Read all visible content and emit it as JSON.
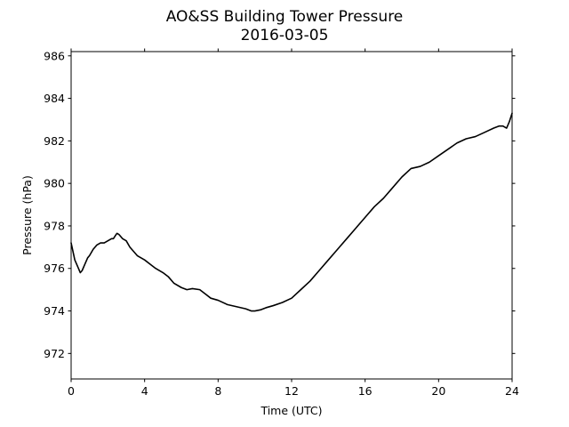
{
  "chart_data": {
    "type": "line",
    "title": "AO&SS Building Tower Pressure",
    "subtitle": "2016-03-05",
    "xlabel": "Time (UTC)",
    "ylabel": "Pressure (hPa)",
    "xlim": [
      0,
      24
    ],
    "ylim": [
      970.8,
      986.2
    ],
    "xticks": [
      0,
      4,
      8,
      12,
      16,
      20,
      24
    ],
    "yticks": [
      972,
      974,
      976,
      978,
      980,
      982,
      984,
      986
    ],
    "grid": false,
    "legend": "none",
    "line_color": "#000000",
    "series": [
      {
        "x": [
          0.0,
          0.1,
          0.2,
          0.35,
          0.5,
          0.6,
          0.7,
          0.8,
          0.9,
          1.0,
          1.2,
          1.4,
          1.6,
          1.8,
          2.0,
          2.2,
          2.3,
          2.45,
          2.5,
          2.6,
          2.7,
          2.8,
          3.0,
          3.2,
          3.4,
          3.6,
          3.8,
          4.0,
          4.3,
          4.6,
          5.0,
          5.3,
          5.6,
          6.0,
          6.3,
          6.6,
          7.0,
          7.3,
          7.6,
          8.0,
          8.5,
          9.0,
          9.5,
          9.8,
          10.0,
          10.3,
          10.6,
          11.0,
          11.5,
          12.0,
          12.5,
          13.0,
          13.5,
          14.0,
          14.5,
          15.0,
          15.5,
          16.0,
          16.5,
          17.0,
          17.5,
          18.0,
          18.5,
          19.0,
          19.5,
          20.0,
          20.5,
          21.0,
          21.5,
          22.0,
          22.5,
          23.0,
          23.3,
          23.5,
          23.7,
          23.85,
          24.0
        ],
        "y": [
          977.2,
          976.8,
          976.4,
          976.1,
          975.8,
          975.9,
          976.1,
          976.3,
          976.5,
          976.6,
          976.9,
          977.1,
          977.2,
          977.2,
          977.3,
          977.4,
          977.4,
          977.6,
          977.65,
          977.6,
          977.5,
          977.4,
          977.3,
          977.0,
          976.8,
          976.6,
          976.5,
          976.4,
          976.2,
          976.0,
          975.8,
          975.6,
          975.3,
          975.1,
          975.0,
          975.05,
          975.0,
          974.8,
          974.6,
          974.5,
          974.3,
          974.2,
          974.1,
          974.0,
          974.0,
          974.05,
          974.15,
          974.25,
          974.4,
          974.6,
          975.0,
          975.4,
          975.9,
          976.4,
          976.9,
          977.4,
          977.9,
          978.4,
          978.9,
          979.3,
          979.8,
          980.3,
          980.7,
          980.8,
          981.0,
          981.3,
          981.6,
          981.9,
          982.1,
          982.2,
          982.4,
          982.6,
          982.7,
          982.7,
          982.6,
          982.9,
          983.3
        ]
      }
    ]
  }
}
